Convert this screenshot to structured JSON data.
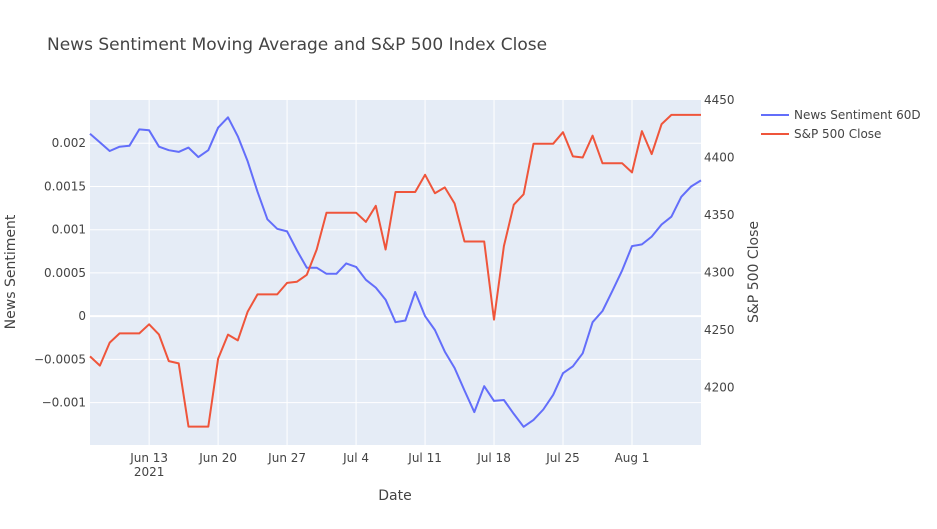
{
  "chart_data": {
    "type": "line",
    "title": "News Sentiment Moving Average and S&P 500 Index Close",
    "xlabel": "Date",
    "ylabel_left": "News Sentiment",
    "ylabel_right": "S&P 500 Close",
    "x_ticks": [
      {
        "date": "2021-06-13",
        "label": "Jun 13",
        "sub": "2021"
      },
      {
        "date": "2021-06-20",
        "label": "Jun 20"
      },
      {
        "date": "2021-06-27",
        "label": "Jun 27"
      },
      {
        "date": "2021-07-04",
        "label": "Jul 4"
      },
      {
        "date": "2021-07-11",
        "label": "Jul 11"
      },
      {
        "date": "2021-07-18",
        "label": "Jul 18"
      },
      {
        "date": "2021-07-25",
        "label": "Jul 25"
      },
      {
        "date": "2021-08-01",
        "label": "Aug 1"
      }
    ],
    "xlim": [
      "2021-06-07",
      "2021-08-08"
    ],
    "y_left": {
      "range": [
        -0.00149,
        0.0025
      ],
      "ticks": [
        -0.001,
        -0.0005,
        0,
        0.0005,
        0.001,
        0.0015,
        0.002
      ],
      "tick_labels": [
        "−0.001",
        "−0.0005",
        "0",
        "0.0005",
        "0.001",
        "0.0015",
        "0.002"
      ]
    },
    "y_right": {
      "range": [
        4150,
        4450
      ],
      "ticks": [
        4200,
        4250,
        4300,
        4350,
        4400,
        4450
      ],
      "tick_labels": [
        "4200",
        "4250",
        "4300",
        "4350",
        "4400",
        "4450"
      ]
    },
    "grid": true,
    "legend_position": "right",
    "series": [
      {
        "name": "News Sentiment 60D",
        "axis": "left",
        "color": "#636EFA",
        "x": [
          "2021-06-07",
          "2021-06-08",
          "2021-06-09",
          "2021-06-10",
          "2021-06-11",
          "2021-06-12",
          "2021-06-13",
          "2021-06-14",
          "2021-06-15",
          "2021-06-16",
          "2021-06-17",
          "2021-06-18",
          "2021-06-19",
          "2021-06-20",
          "2021-06-21",
          "2021-06-22",
          "2021-06-23",
          "2021-06-24",
          "2021-06-25",
          "2021-06-26",
          "2021-06-27",
          "2021-06-28",
          "2021-06-29",
          "2021-06-30",
          "2021-07-01",
          "2021-07-02",
          "2021-07-03",
          "2021-07-04",
          "2021-07-05",
          "2021-07-06",
          "2021-07-07",
          "2021-07-08",
          "2021-07-09",
          "2021-07-10",
          "2021-07-11",
          "2021-07-12",
          "2021-07-13",
          "2021-07-14",
          "2021-07-15",
          "2021-07-16",
          "2021-07-17",
          "2021-07-18",
          "2021-07-19",
          "2021-07-20",
          "2021-07-21",
          "2021-07-22",
          "2021-07-23",
          "2021-07-24",
          "2021-07-25",
          "2021-07-26",
          "2021-07-27",
          "2021-07-28",
          "2021-07-29",
          "2021-07-30",
          "2021-07-31",
          "2021-08-01",
          "2021-08-02",
          "2021-08-03",
          "2021-08-04",
          "2021-08-05",
          "2021-08-06",
          "2021-08-07",
          "2021-08-08"
        ],
        "values": [
          0.00211,
          0.00201,
          0.00191,
          0.00196,
          0.00197,
          0.00216,
          0.00215,
          0.00196,
          0.00192,
          0.0019,
          0.00195,
          0.00184,
          0.00192,
          0.00218,
          0.0023,
          0.00208,
          0.00179,
          0.00144,
          0.00112,
          0.00101,
          0.00098,
          0.00076,
          0.00056,
          0.00056,
          0.00049,
          0.00049,
          0.00061,
          0.00057,
          0.00042,
          0.00033,
          0.00019,
          -7e-05,
          -5e-05,
          0.00028,
          0.0,
          -0.00016,
          -0.00041,
          -0.0006,
          -0.00086,
          -0.00111,
          -0.00081,
          -0.00098,
          -0.00097,
          -0.00113,
          -0.00128,
          -0.0012,
          -0.00108,
          -0.00091,
          -0.00066,
          -0.00058,
          -0.00043,
          -7e-05,
          6e-05,
          0.00029,
          0.00053,
          0.00081,
          0.00083,
          0.00092,
          0.00106,
          0.00115,
          0.00138,
          0.0015,
          0.00157
        ]
      },
      {
        "name": "S&P 500 Close",
        "axis": "right",
        "color": "#EF553B",
        "x": [
          "2021-06-07",
          "2021-06-08",
          "2021-06-09",
          "2021-06-10",
          "2021-06-11",
          "2021-06-12",
          "2021-06-13",
          "2021-06-14",
          "2021-06-15",
          "2021-06-16",
          "2021-06-17",
          "2021-06-18",
          "2021-06-19",
          "2021-06-20",
          "2021-06-21",
          "2021-06-22",
          "2021-06-23",
          "2021-06-24",
          "2021-06-25",
          "2021-06-26",
          "2021-06-27",
          "2021-06-28",
          "2021-06-29",
          "2021-06-30",
          "2021-07-01",
          "2021-07-02",
          "2021-07-03",
          "2021-07-04",
          "2021-07-05",
          "2021-07-06",
          "2021-07-07",
          "2021-07-08",
          "2021-07-09",
          "2021-07-10",
          "2021-07-11",
          "2021-07-12",
          "2021-07-13",
          "2021-07-14",
          "2021-07-15",
          "2021-07-16",
          "2021-07-17",
          "2021-07-18",
          "2021-07-19",
          "2021-07-20",
          "2021-07-21",
          "2021-07-22",
          "2021-07-23",
          "2021-07-24",
          "2021-07-25",
          "2021-07-26",
          "2021-07-27",
          "2021-07-28",
          "2021-07-29",
          "2021-07-30",
          "2021-07-31",
          "2021-08-01",
          "2021-08-02",
          "2021-08-03",
          "2021-08-04",
          "2021-08-05",
          "2021-08-06",
          "2021-08-07",
          "2021-08-08"
        ],
        "values": [
          4227,
          4219,
          4239,
          4247,
          4247,
          4247,
          4255,
          4246,
          4223,
          4221,
          4166,
          4166,
          4166,
          4225,
          4246,
          4241,
          4266,
          4281,
          4281,
          4281,
          4291,
          4292,
          4298,
          4320,
          4352,
          4352,
          4352,
          4352,
          4344,
          4358,
          4320,
          4370,
          4370,
          4370,
          4385,
          4369,
          4374,
          4360,
          4327,
          4327,
          4327,
          4259,
          4323,
          4359,
          4368,
          4412,
          4412,
          4412,
          4422,
          4401,
          4400,
          4419,
          4395,
          4395,
          4395,
          4387,
          4423,
          4403,
          4429,
          4437,
          4437,
          4437,
          4437
        ]
      }
    ]
  }
}
